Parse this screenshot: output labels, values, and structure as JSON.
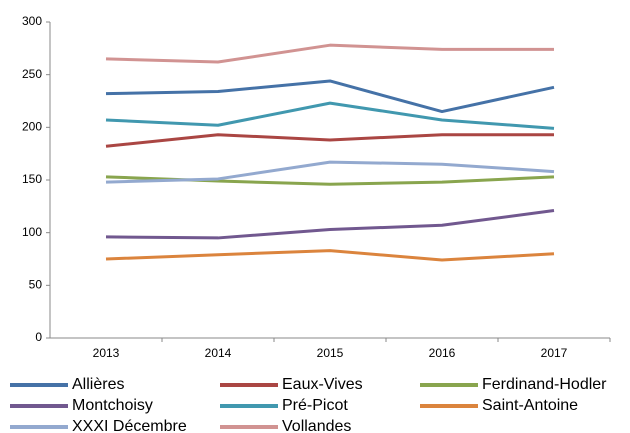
{
  "chart_data": {
    "type": "line",
    "categories": [
      "2013",
      "2014",
      "2015",
      "2016",
      "2017"
    ],
    "series": [
      {
        "name": "Allières",
        "color": "#4572a7",
        "values": [
          232,
          234,
          244,
          215,
          238
        ]
      },
      {
        "name": "Eaux-Vives",
        "color": "#aa4643",
        "values": [
          182,
          193,
          188,
          193,
          193
        ]
      },
      {
        "name": "Ferdinand-Hodler",
        "color": "#89a54e",
        "values": [
          153,
          149,
          146,
          148,
          153
        ]
      },
      {
        "name": "Montchoisy",
        "color": "#71588f",
        "values": [
          96,
          95,
          103,
          107,
          121
        ]
      },
      {
        "name": "Pré-Picot",
        "color": "#4198af",
        "values": [
          207,
          202,
          223,
          207,
          199
        ]
      },
      {
        "name": "Saint-Antoine",
        "color": "#db843d",
        "values": [
          75,
          79,
          83,
          74,
          80
        ]
      },
      {
        "name": "XXXI Décembre",
        "color": "#93a9cf",
        "values": [
          148,
          151,
          167,
          165,
          158
        ]
      },
      {
        "name": "Vollandes",
        "color": "#d19392",
        "values": [
          265,
          262,
          278,
          274,
          274
        ]
      }
    ],
    "ylim": [
      0,
      300
    ],
    "yticks": [
      0,
      50,
      100,
      150,
      200,
      250,
      300
    ],
    "grid": false,
    "legend": "bottom"
  }
}
